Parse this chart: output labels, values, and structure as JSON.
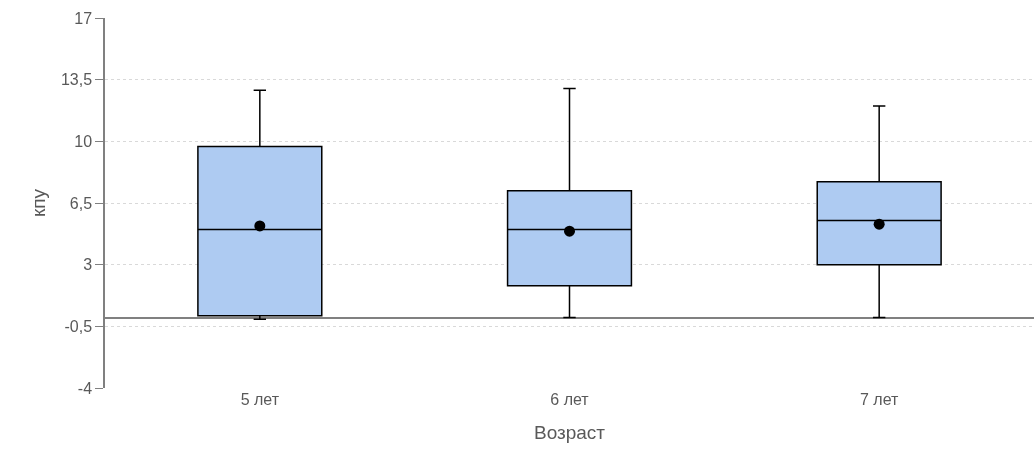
{
  "chart_data": {
    "type": "box",
    "xlabel": "Возраст",
    "ylabel": "кпу",
    "categories": [
      "5 лет",
      "6 лет",
      "7 лет"
    ],
    "series": [
      {
        "color": "#aecbf2",
        "boxes": [
          {
            "low": -0.1,
            "q1": 0.1,
            "median": 5.0,
            "q3": 9.7,
            "high": 12.9,
            "mean": 5.2
          },
          {
            "low": 0,
            "q1": 1.8,
            "median": 5.0,
            "q3": 7.2,
            "high": 13.0,
            "mean": 4.9
          },
          {
            "low": 0,
            "q1": 3.0,
            "median": 5.5,
            "q3": 7.7,
            "high": 12.0,
            "mean": 5.3
          }
        ]
      }
    ],
    "ylim": [
      -4,
      17
    ],
    "yticks": [
      17,
      {
        "value": 13.5,
        "label": "13,5"
      },
      10,
      {
        "value": 6.5,
        "label": "6,5"
      },
      3,
      {
        "value": -0.5,
        "label": "-0,5"
      },
      -4
    ],
    "grid": "y"
  }
}
